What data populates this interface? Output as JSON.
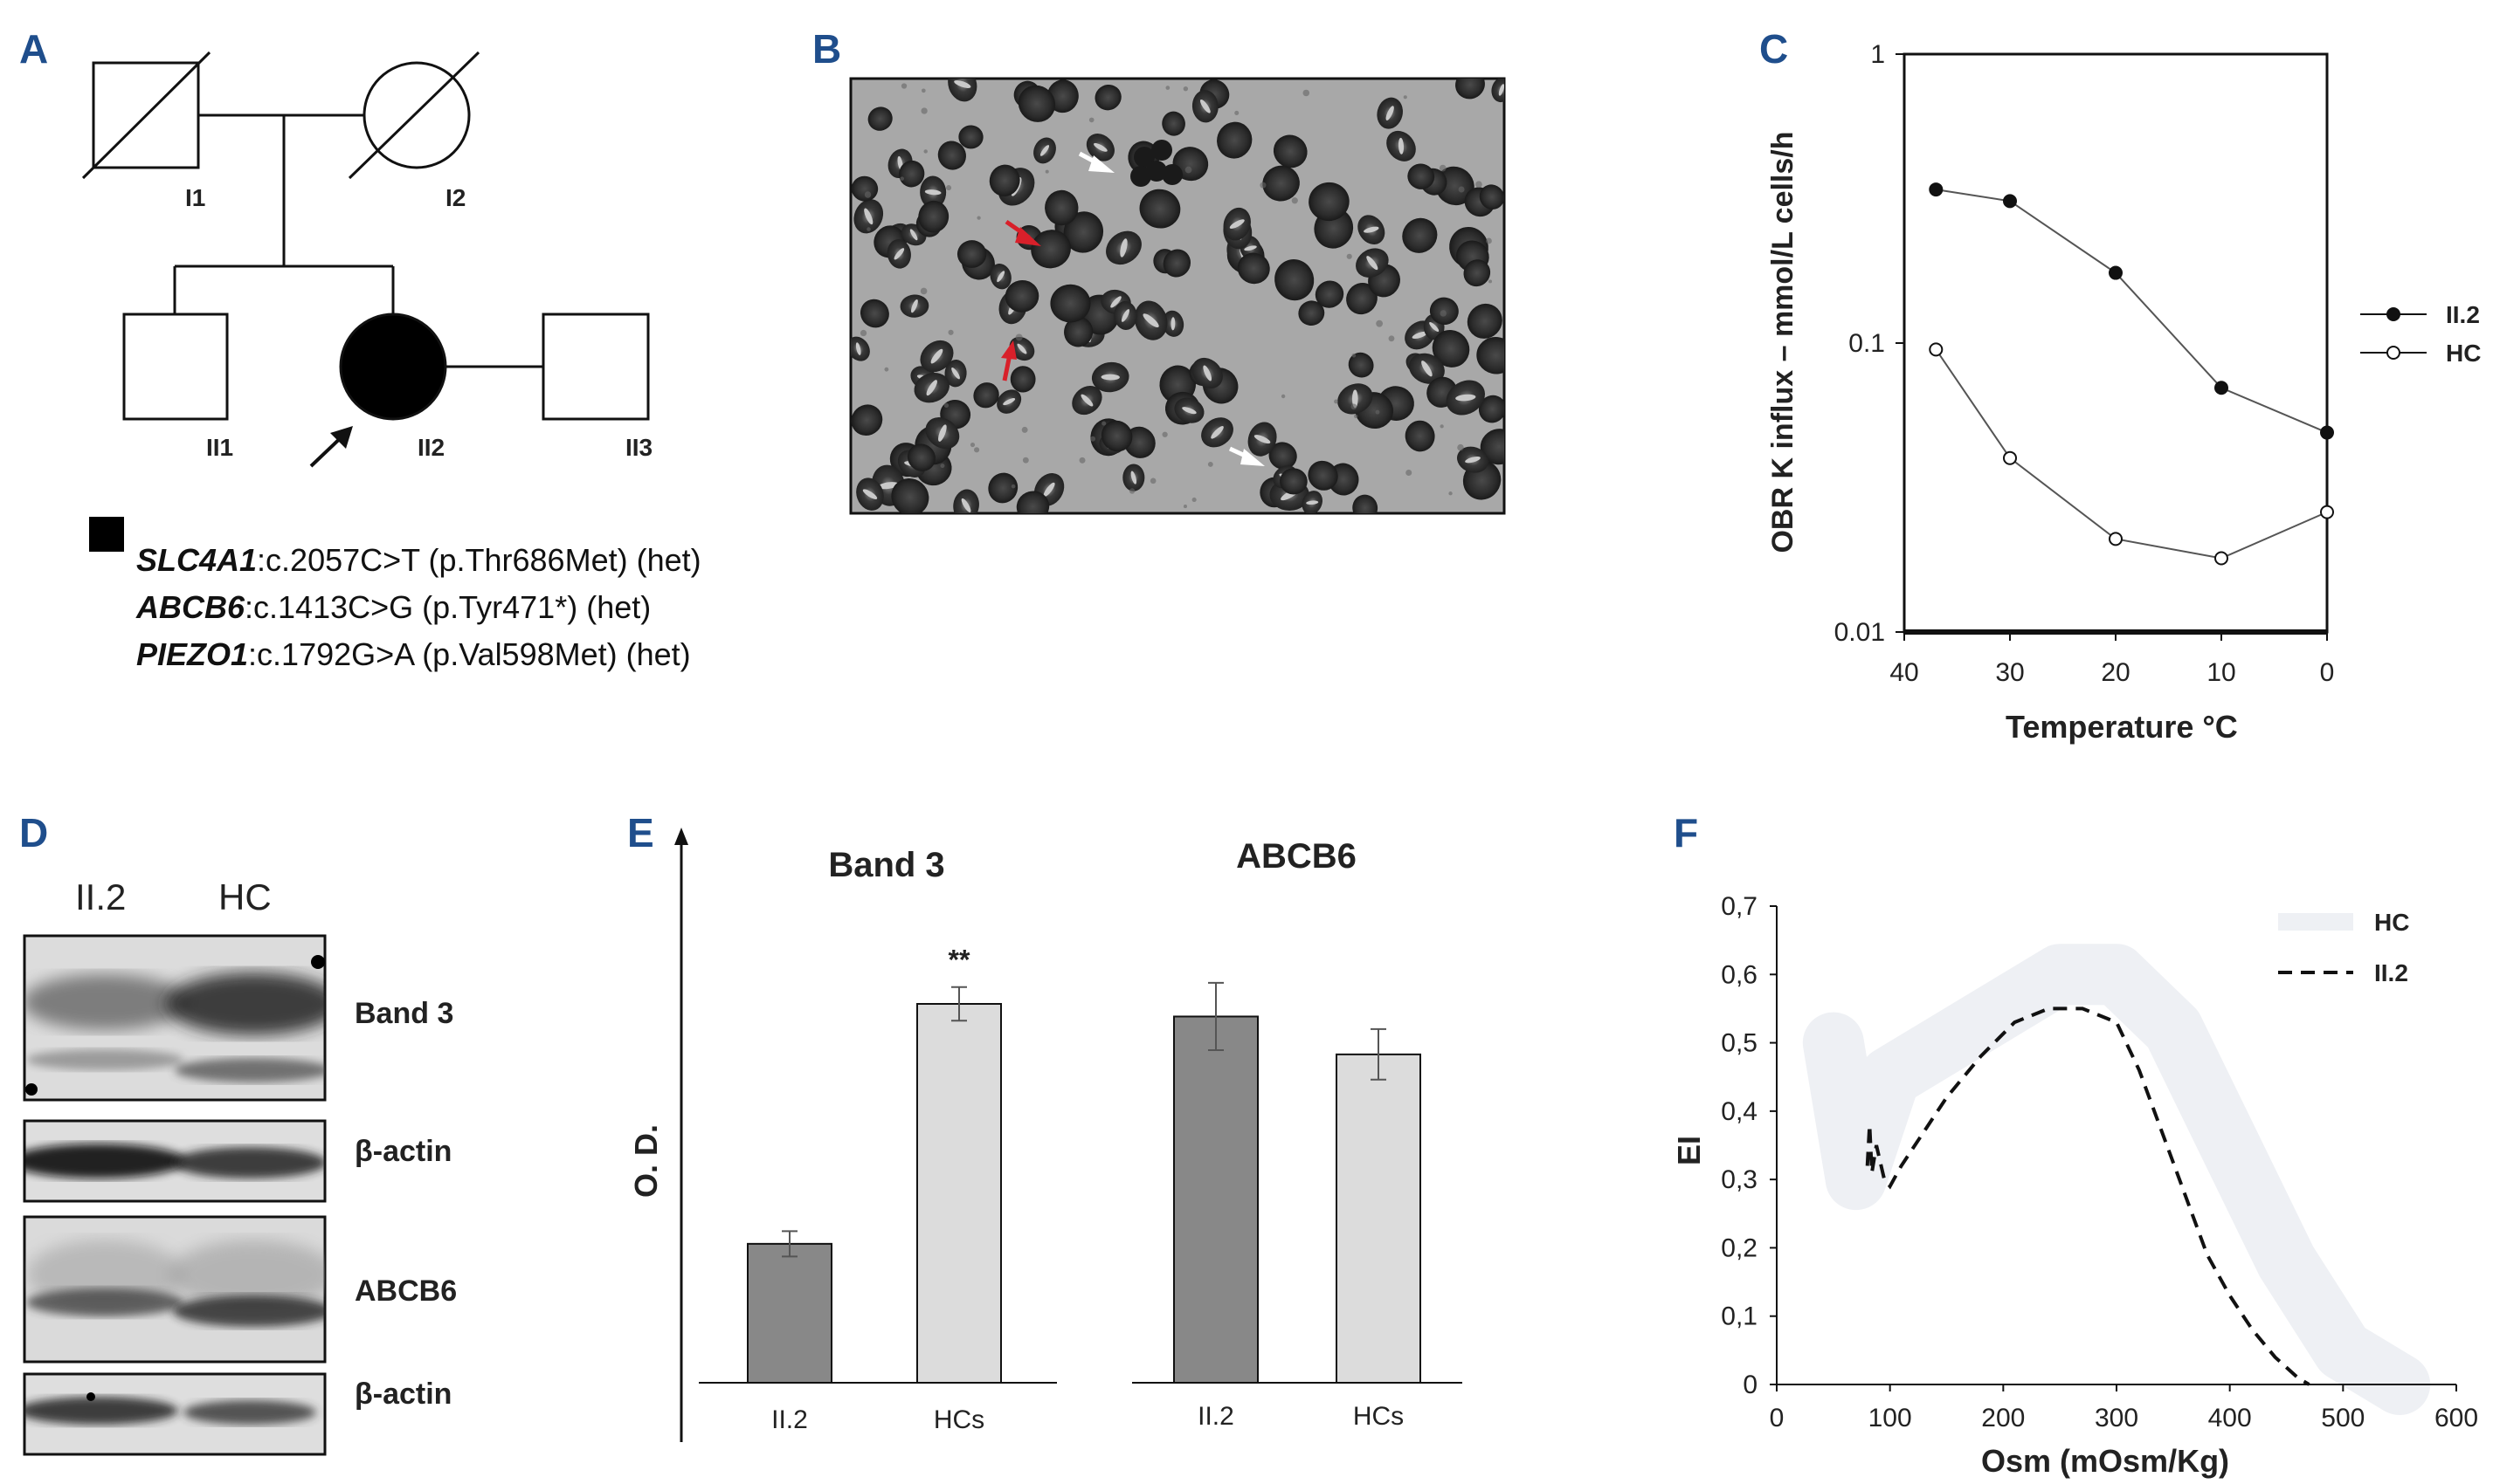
{
  "panels": {
    "A": "A",
    "B": "B",
    "C": "C",
    "D": "D",
    "E": "E",
    "F": "F"
  },
  "pedigree": {
    "individuals": [
      "I1",
      "I2",
      "II1",
      "II2",
      "II3"
    ],
    "variants": [
      {
        "gene": "SLC4A1",
        "change": ":c.2057C>T (p.Thr686Met) (het)"
      },
      {
        "gene": "ABCB6",
        "change": ":c.1413C>G (p.Tyr471*) (het)"
      },
      {
        "gene": "PIEZO1",
        "change": ":c.1792G>A (p.Val598Met) (het)"
      }
    ]
  },
  "blot": {
    "lane_labels": [
      "II.2",
      "HC"
    ],
    "band_labels": [
      "Band 3",
      "β-actin",
      "ABCB6",
      "β-actin"
    ]
  },
  "chart_data": [
    {
      "panel": "C",
      "type": "line",
      "scale": "log",
      "xlabel": "Temperature °C",
      "ylabel": "OBR K influx – mmol/L cells/h",
      "xlim": [
        40,
        0
      ],
      "ylim": [
        0.01,
        1
      ],
      "x_ticks": [
        "40",
        "30",
        "20",
        "10",
        "0"
      ],
      "y_ticks": [
        "1",
        "0.1",
        "0.01"
      ],
      "legend": "right",
      "series": [
        {
          "name": "II.2",
          "marker": "filled",
          "x": [
            37,
            30,
            20,
            10,
            0
          ],
          "y": [
            0.34,
            0.31,
            0.175,
            0.07,
            0.049
          ]
        },
        {
          "name": "HC",
          "marker": "open",
          "x": [
            37,
            30,
            20,
            10,
            0
          ],
          "y": [
            0.095,
            0.04,
            0.021,
            0.018,
            0.026
          ]
        }
      ]
    },
    {
      "panel": "E",
      "type": "bar",
      "ylabel": "O. D.",
      "groups": [
        {
          "title": "Band 3",
          "categories": [
            "II.2",
            "HCs"
          ],
          "values": [
            0.33,
            0.9
          ],
          "errors": [
            0.03,
            0.04
          ],
          "annotation": "**"
        },
        {
          "title": "ABCB6",
          "categories": [
            "II.2",
            "HCs"
          ],
          "values": [
            0.87,
            0.78
          ],
          "errors": [
            0.08,
            0.06
          ],
          "annotation": ""
        }
      ]
    },
    {
      "panel": "F",
      "type": "line",
      "xlabel": "Osm (mOsm/Kg)",
      "ylabel": "EI",
      "xlim": [
        0,
        600
      ],
      "ylim": [
        0,
        0.7
      ],
      "x_ticks": [
        "0",
        "100",
        "200",
        "300",
        "400",
        "500",
        "600"
      ],
      "y_ticks": [
        "0",
        "0,1",
        "0,2",
        "0,3",
        "0,4",
        "0,5",
        "0,6",
        "0,7"
      ],
      "legend": "top-right",
      "series": [
        {
          "name": "HC",
          "style": "band",
          "x": [
            50,
            70,
            100,
            150,
            200,
            250,
            300,
            350,
            400,
            450,
            500,
            550
          ],
          "y": [
            0.5,
            0.3,
            0.45,
            0.5,
            0.55,
            0.6,
            0.6,
            0.52,
            0.35,
            0.18,
            0.05,
            0.0
          ]
        },
        {
          "name": "II.2",
          "style": "dashed",
          "x": [
            80,
            82,
            84,
            88,
            95,
            100,
            110,
            130,
            150,
            180,
            210,
            240,
            270,
            300,
            320,
            340,
            360,
            380,
            400,
            420,
            440,
            460,
            470
          ],
          "y": [
            0.32,
            0.38,
            0.31,
            0.35,
            0.3,
            0.29,
            0.32,
            0.37,
            0.42,
            0.48,
            0.53,
            0.55,
            0.55,
            0.53,
            0.46,
            0.37,
            0.28,
            0.19,
            0.13,
            0.08,
            0.04,
            0.01,
            0.0
          ]
        }
      ]
    }
  ]
}
